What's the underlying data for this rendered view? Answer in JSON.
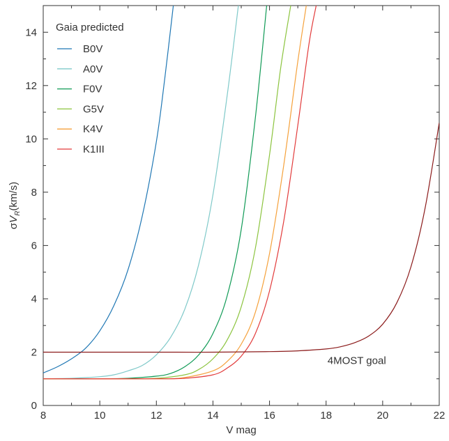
{
  "chart_data": {
    "type": "line",
    "xlabel": "V mag",
    "ylabel_prefix": "σ",
    "ylabel_var": "V",
    "ylabel_sub": "R",
    "ylabel_unit": "(km/s)",
    "xlim": [
      8,
      22
    ],
    "ylim": [
      0,
      15
    ],
    "xticks": [
      8,
      10,
      12,
      14,
      16,
      18,
      20,
      22
    ],
    "yticks": [
      0,
      2,
      4,
      6,
      8,
      10,
      12,
      14
    ],
    "grid": false,
    "legend_title": "Gaia predicted",
    "legend_position": "top-left",
    "series": [
      {
        "name": "B0V",
        "color": "#1f77b4",
        "x": [
          8.0,
          8.5,
          9.0,
          9.5,
          10.0,
          10.5,
          11.0,
          11.5,
          12.0,
          12.3,
          12.6
        ],
        "y": [
          1.22,
          1.45,
          1.75,
          2.15,
          2.8,
          3.75,
          5.1,
          7.1,
          9.9,
          12.3,
          15.0
        ]
      },
      {
        "name": "A0V",
        "color": "#7fc9c9",
        "x": [
          8.0,
          9.0,
          10.0,
          10.5,
          11.0,
          11.5,
          12.0,
          12.5,
          13.0,
          13.5,
          14.0,
          14.5,
          14.9
        ],
        "y": [
          1.0,
          1.02,
          1.08,
          1.15,
          1.3,
          1.5,
          1.9,
          2.55,
          3.6,
          5.3,
          7.9,
          11.6,
          15.0
        ]
      },
      {
        "name": "F0V",
        "color": "#0f9a55",
        "x": [
          8.0,
          10.0,
          11.0,
          12.0,
          12.5,
          13.0,
          13.5,
          14.0,
          14.5,
          15.0,
          15.5,
          15.9
        ],
        "y": [
          1.0,
          1.0,
          1.02,
          1.1,
          1.2,
          1.45,
          1.9,
          2.7,
          4.1,
          6.6,
          10.8,
          15.0
        ]
      },
      {
        "name": "G5V",
        "color": "#8cc43f",
        "x": [
          8.0,
          11.0,
          12.0,
          13.0,
          13.5,
          14.0,
          14.5,
          15.0,
          15.5,
          16.0,
          16.4,
          16.75
        ],
        "y": [
          1.0,
          1.0,
          1.02,
          1.15,
          1.35,
          1.75,
          2.45,
          3.7,
          5.9,
          9.4,
          12.7,
          15.0
        ]
      },
      {
        "name": "K4V",
        "color": "#f5a13b",
        "x": [
          8.0,
          12.0,
          13.0,
          14.0,
          14.5,
          15.0,
          15.5,
          16.0,
          16.5,
          17.0,
          17.3
        ],
        "y": [
          1.0,
          1.0,
          1.05,
          1.3,
          1.65,
          2.3,
          3.5,
          5.7,
          9.0,
          12.9,
          15.0
        ]
      },
      {
        "name": "K1III",
        "color": "#e23b3b",
        "x": [
          8.0,
          12.0,
          13.0,
          14.0,
          14.5,
          15.0,
          15.5,
          16.0,
          16.5,
          17.0,
          17.4,
          17.65
        ],
        "y": [
          1.0,
          1.0,
          1.02,
          1.15,
          1.4,
          1.85,
          2.7,
          4.3,
          6.9,
          10.5,
          13.6,
          15.0
        ]
      },
      {
        "name": "4MOST goal",
        "color": "#8b1a1a",
        "x": [
          8.0,
          12.0,
          14.0,
          16.0,
          17.0,
          18.0,
          18.5,
          19.0,
          19.5,
          20.0,
          20.5,
          21.0,
          21.5,
          22.0
        ],
        "y": [
          2.0,
          2.0,
          2.0,
          2.02,
          2.05,
          2.12,
          2.2,
          2.35,
          2.6,
          3.05,
          3.85,
          5.2,
          7.4,
          10.6
        ]
      }
    ],
    "annotations": [
      {
        "text": "4MOST goal",
        "x": 18.05,
        "y": 1.55
      }
    ]
  }
}
